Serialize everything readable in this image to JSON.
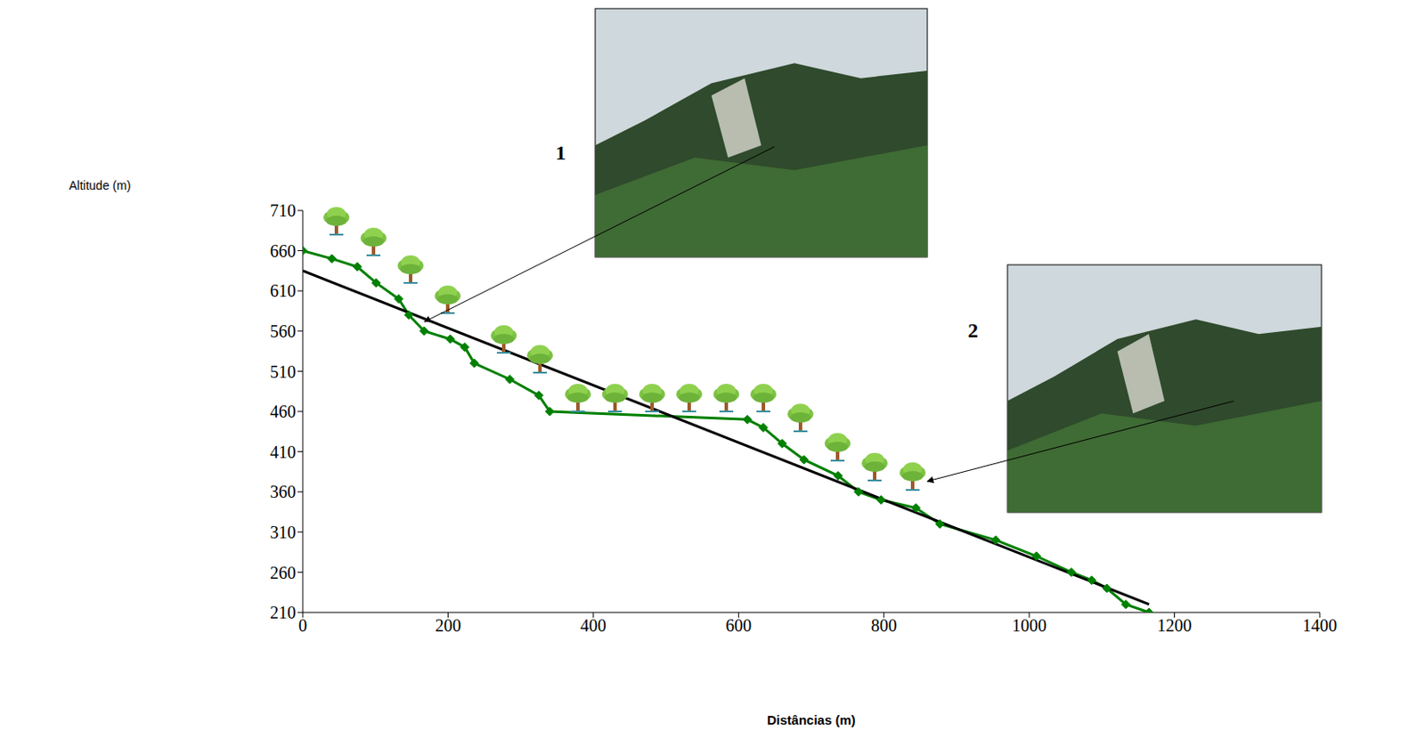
{
  "chart_data": {
    "type": "line",
    "x_label": "Distâncias (m)",
    "y_label": "Altitude (m)",
    "annotations": [
      "1",
      "2"
    ],
    "xlim": [
      0,
      1400
    ],
    "xticks": [
      0,
      200,
      400,
      600,
      800,
      1000,
      1200,
      1400
    ],
    "ylim": [
      210,
      710
    ],
    "yticks": [
      210,
      260,
      310,
      360,
      410,
      460,
      510,
      560,
      610,
      660,
      710
    ],
    "grid": false,
    "series": [
      {
        "type": "line",
        "color": "#008000",
        "marker": "diamond",
        "x": [
          0,
          40,
          75,
          101,
          132,
          146,
          167,
          203,
          223,
          236,
          285,
          325,
          340,
          612,
          634,
          660,
          690,
          737,
          765,
          796,
          844,
          877,
          954,
          1010,
          1058,
          1086,
          1107,
          1133,
          1165
        ],
        "values": [
          660,
          650,
          640,
          620,
          600,
          580,
          560,
          550,
          540,
          520,
          500,
          480,
          460,
          450,
          440,
          420,
          400,
          380,
          360,
          350,
          340,
          320,
          300,
          280,
          260,
          250,
          240,
          220,
          210
        ]
      },
      {
        "type": "line",
        "color": "#000000",
        "marker": "none",
        "x": [
          0,
          1165
        ],
        "values": [
          635,
          220
        ]
      }
    ]
  }
}
